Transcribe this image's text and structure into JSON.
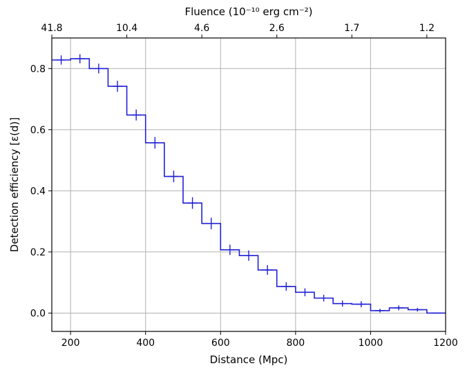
{
  "chart_data": {
    "type": "line",
    "style": "step",
    "xlabel": "Distance (Mpc)",
    "ylabel": "Detection efficiency [ε(d)]",
    "top_xlabel": "Fluence (10⁻¹⁰ erg cm⁻²)",
    "xlim": [
      150,
      1200
    ],
    "ylim": [
      -0.06,
      0.9
    ],
    "xticks": [
      200,
      400,
      600,
      800,
      1000,
      1200
    ],
    "yticks": [
      0.0,
      0.2,
      0.4,
      0.6,
      0.8
    ],
    "top_ticks": [
      {
        "at": 150,
        "label": "41.8"
      },
      {
        "at": 350,
        "label": "10.4"
      },
      {
        "at": 550,
        "label": "4.6"
      },
      {
        "at": 750,
        "label": "2.6"
      },
      {
        "at": 950,
        "label": "1.7"
      },
      {
        "at": 1150,
        "label": "1.2"
      }
    ],
    "grid": true,
    "line_color": "#1f1fd6",
    "bin_edges": [
      150,
      200,
      250,
      300,
      350,
      400,
      450,
      500,
      550,
      600,
      650,
      700,
      750,
      800,
      850,
      900,
      950,
      1000,
      1050,
      1100,
      1150,
      1200
    ],
    "x": [
      175,
      225,
      275,
      325,
      375,
      425,
      475,
      525,
      575,
      625,
      675,
      725,
      775,
      825,
      875,
      925,
      975,
      1025,
      1075,
      1125,
      1175
    ],
    "y": [
      0.828,
      0.832,
      0.8,
      0.742,
      0.648,
      0.557,
      0.447,
      0.36,
      0.293,
      0.207,
      0.188,
      0.141,
      0.087,
      0.068,
      0.049,
      0.031,
      0.029,
      0.008,
      0.017,
      0.011,
      0.0
    ],
    "yerr": [
      0.015,
      0.015,
      0.016,
      0.018,
      0.018,
      0.019,
      0.019,
      0.019,
      0.019,
      0.017,
      0.017,
      0.016,
      0.014,
      0.013,
      0.011,
      0.01,
      0.01,
      0.006,
      0.008,
      0.006,
      0.0
    ]
  }
}
